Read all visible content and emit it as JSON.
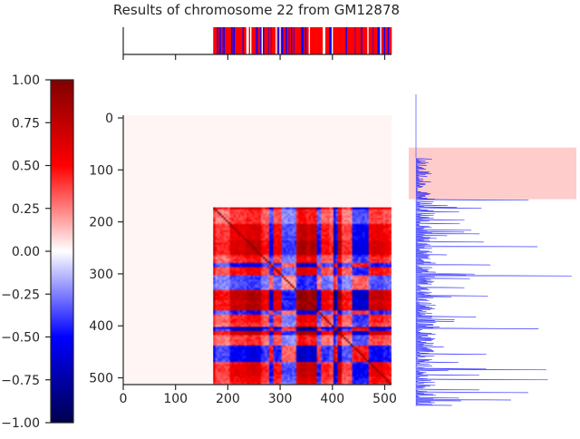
{
  "chart_data": {
    "type": "heatmap",
    "title": "Results of chromosome 22 from GM12878",
    "colormap": "seismic",
    "value_range": [
      -1.0,
      1.0
    ],
    "matrix_size": 513,
    "data_start_bin": 172,
    "x_ticks": [
      0,
      100,
      200,
      300,
      400,
      500
    ],
    "y_ticks": [
      0,
      100,
      200,
      300,
      400,
      500
    ],
    "colorbar_ticks": [
      "1.00",
      "0.75",
      "0.50",
      "0.25",
      "0.00",
      "−0.25",
      "−0.50",
      "−0.75",
      "−1.00"
    ],
    "highlight_region": {
      "start_bin": 95,
      "end_bin": 165,
      "color": "#ffcccc"
    },
    "side_profile_color": "#0000ff",
    "grid": false
  }
}
